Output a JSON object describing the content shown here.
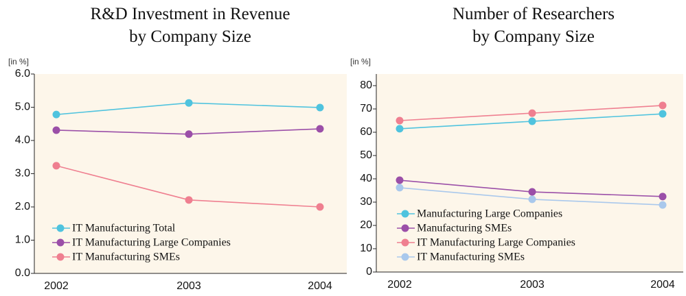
{
  "chart_data": [
    {
      "type": "line",
      "title": [
        "R&D Investment in Revenue",
        "by Company Size"
      ],
      "unit": "[in %]",
      "categories": [
        "2002",
        "2003",
        "2004"
      ],
      "ylim": [
        0,
        6
      ],
      "yticks": [
        {
          "value": 0,
          "label": "0.0"
        },
        {
          "value": 1,
          "label": "1.0"
        },
        {
          "value": 2,
          "label": "2.0"
        },
        {
          "value": 3,
          "label": "3.0"
        },
        {
          "value": 4,
          "label": "4.0"
        },
        {
          "value": 5,
          "label": "5.0"
        },
        {
          "value": 6,
          "label": "6.0"
        }
      ],
      "legend": "lower left",
      "series": [
        {
          "name": "IT Manufacturing Total",
          "color": "#4fc3de",
          "values": [
            4.78,
            5.13,
            4.99
          ]
        },
        {
          "name": "IT Manufacturing Large Companies",
          "color": "#9b4fa8",
          "values": [
            4.31,
            4.19,
            4.35
          ]
        },
        {
          "name": "IT Manufacturing SMEs",
          "color": "#ef7f90",
          "values": [
            3.24,
            2.21,
            2.0
          ]
        }
      ]
    },
    {
      "type": "line",
      "title": [
        "Number of Researchers",
        "by Company Size"
      ],
      "unit": "[in %]",
      "categories": [
        "2002",
        "2003",
        "2004"
      ],
      "ylim": [
        0,
        85
      ],
      "yticks": [
        0,
        10,
        20,
        30,
        40,
        50,
        60,
        70,
        80
      ],
      "legend": "lower left",
      "series": [
        {
          "name": "Manufacturing Large Companies",
          "color": "#4fc3de",
          "values": [
            61.5,
            64.7,
            67.9
          ]
        },
        {
          "name": "Manufacturing SMEs",
          "color": "#9b4fa8",
          "values": [
            39.4,
            34.4,
            32.4
          ]
        },
        {
          "name": "IT Manufacturing Large Companies",
          "color": "#ef7f90",
          "values": [
            65.0,
            68.2,
            71.5
          ]
        },
        {
          "name": "IT Manufacturing SMEs",
          "color": "#a9c8ec",
          "values": [
            36.2,
            31.2,
            28.8
          ]
        }
      ]
    }
  ]
}
